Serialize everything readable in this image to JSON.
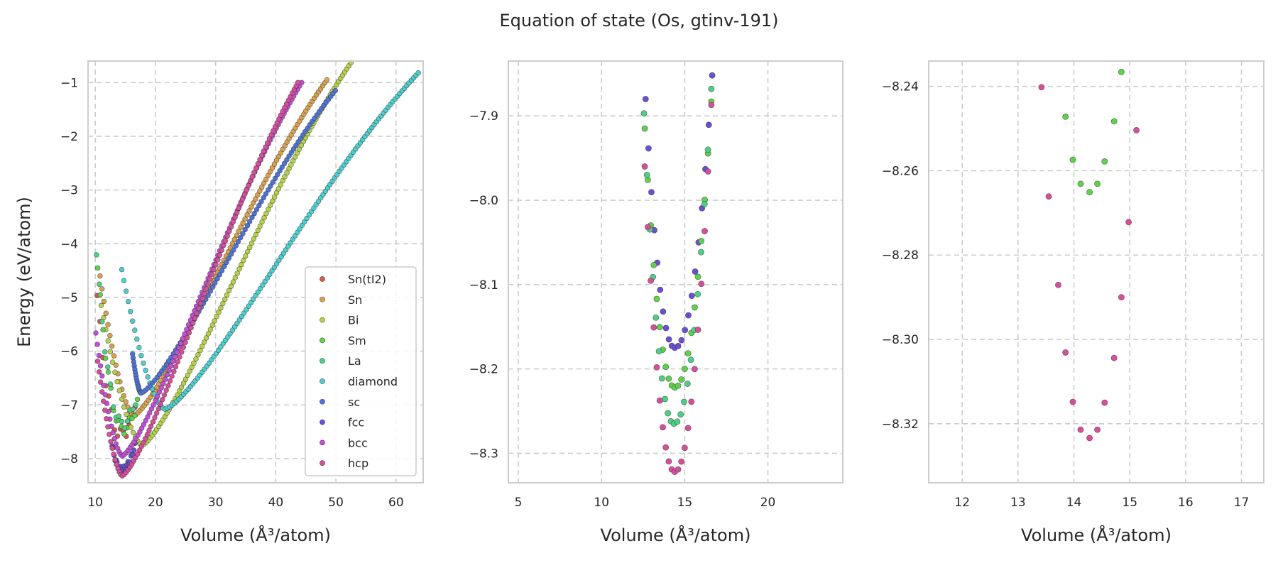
{
  "figure": {
    "title": "Equation of state (Os, gtinv-191)"
  },
  "colors": {
    "Sn(tI2)": "#d65a4e",
    "Sn": "#d9a24f",
    "Bi": "#b5d24a",
    "Sm": "#5fd24c",
    "La": "#4ecf86",
    "diamond": "#4ecfcf",
    "sc": "#4f74d6",
    "fcc": "#6a4fd6",
    "bcc": "#c24fd6",
    "hcp": "#d64f9b"
  },
  "chart_data": [
    {
      "type": "scatter",
      "panel": "left",
      "xlabel": "Volume (Å³/atom)",
      "ylabel": "Energy (eV/atom)",
      "xlim": [
        8.8,
        64.5
      ],
      "ylim": [
        -8.45,
        -0.6
      ],
      "xticks": [
        10,
        20,
        30,
        40,
        50,
        60
      ],
      "yticks": [
        -8,
        -7,
        -6,
        -5,
        -4,
        -3,
        -2,
        -1
      ],
      "grid": true,
      "legend": {
        "position": "lower-right",
        "entries": [
          "Sn(tI2)",
          "Sn",
          "Bi",
          "Sm",
          "La",
          "diamond",
          "sc",
          "fcc",
          "bcc",
          "hcp"
        ]
      },
      "series": [
        {
          "name": "Sn(tI2)",
          "v0": 14.2,
          "e0": -7.55,
          "vmin": 10.3,
          "vmax": 16.6,
          "n": 14,
          "spread": 0.12
        },
        {
          "name": "Sn",
          "v0": 16.4,
          "e0": -7.2,
          "vmin": 10.8,
          "vmax": 48.5,
          "n": 110,
          "vend": 48.5,
          "eend": -0.95
        },
        {
          "name": "Bi",
          "v0": 17.8,
          "e0": -7.75,
          "vmin": 11.0,
          "vmax": 52.5,
          "n": 120,
          "vend": 52.5,
          "eend": -0.63
        },
        {
          "name": "Sm",
          "v0": 14.6,
          "e0": -7.45,
          "vmin": 10.4,
          "vmax": 17.0,
          "n": 16,
          "spread": 0.1
        },
        {
          "name": "La",
          "v0": 14.5,
          "e0": -7.35,
          "vmin": 10.2,
          "vmax": 17.2,
          "n": 16,
          "spread": 0.1
        },
        {
          "name": "diamond",
          "v0": 21.6,
          "e0": -7.08,
          "vmin": 14.4,
          "vmax": 63.7,
          "n": 130,
          "vend": 63.7,
          "eend": -0.82
        },
        {
          "name": "sc",
          "v0": 17.6,
          "e0": -6.78,
          "vmin": 16.2,
          "vmax": 49.9,
          "n": 100,
          "vend": 49.9,
          "eend": -1.15
        },
        {
          "name": "fcc",
          "v0": 14.4,
          "e0": -8.2,
          "vmin": 12.8,
          "vmax": 16.6,
          "n": 24,
          "spread": 0.05
        },
        {
          "name": "bcc",
          "v0": 14.5,
          "e0": -7.95,
          "vmin": 10.1,
          "vmax": 44.3,
          "n": 110,
          "vend": 44.3,
          "eend": -1.0
        },
        {
          "name": "hcp",
          "v0": 14.5,
          "e0": -8.32,
          "vmin": 10.4,
          "vmax": 43.7,
          "n": 110,
          "vend": 43.7,
          "eend": -1.0
        }
      ]
    },
    {
      "type": "scatter",
      "panel": "middle",
      "xlabel": "Volume (Å³/atom)",
      "ylabel": "",
      "xlim": [
        4.4,
        24.5
      ],
      "ylim": [
        -8.335,
        -7.835
      ],
      "xticks": [
        5,
        10,
        15,
        20
      ],
      "yticks": [
        -8.3,
        -8.2,
        -8.1,
        -8.0,
        -7.9
      ],
      "grid": true,
      "series": [
        {
          "name": "fcc",
          "v0": 14.4,
          "e0": -8.175,
          "vleft": 12.65,
          "vright": 16.65,
          "eleft": -7.88,
          "eright": -7.852,
          "n": 22
        },
        {
          "name": "Sm",
          "v0": 14.4,
          "e0": -8.222,
          "vleft": 12.6,
          "vright": 16.6,
          "eleft": -7.915,
          "eright": -7.883,
          "n": 22
        },
        {
          "name": "La",
          "v0": 14.35,
          "e0": -8.265,
          "vleft": 12.55,
          "vright": 16.6,
          "eleft": -7.897,
          "eright": -7.868,
          "n": 22
        },
        {
          "name": "hcp",
          "v0": 14.4,
          "e0": -8.322,
          "vleft": 12.6,
          "vright": 16.6,
          "eleft": -7.96,
          "eright": -7.887,
          "n": 22
        }
      ]
    },
    {
      "type": "scatter",
      "panel": "right",
      "xlabel": "Volume (Å³/atom)",
      "ylabel": "",
      "xlim": [
        11.4,
        17.4
      ],
      "ylim": [
        -8.334,
        -8.234
      ],
      "xticks": [
        12,
        13,
        14,
        15,
        16,
        17
      ],
      "yticks": [
        -8.32,
        -8.3,
        -8.28,
        -8.26,
        -8.24
      ],
      "grid": true,
      "series": [
        {
          "name": "Sm",
          "x": [
            14.85,
            13.85,
            14.72,
            13.98,
            14.55,
            14.12,
            14.42,
            14.28
          ],
          "y": [
            -8.2366,
            -8.2472,
            -8.2483,
            -8.2574,
            -8.2578,
            -8.2631,
            -8.2631,
            -8.2651
          ]
        },
        {
          "name": "hcp",
          "x": [
            13.42,
            15.12,
            13.55,
            14.98,
            13.72,
            14.85,
            13.85,
            14.72,
            13.98,
            14.55,
            14.12,
            14.42,
            14.28
          ],
          "y": [
            -8.2402,
            -8.2504,
            -8.2661,
            -8.2722,
            -8.2871,
            -8.29,
            -8.3031,
            -8.3044,
            -8.3148,
            -8.315,
            -8.3214,
            -8.3214,
            -8.3234
          ]
        }
      ]
    }
  ]
}
